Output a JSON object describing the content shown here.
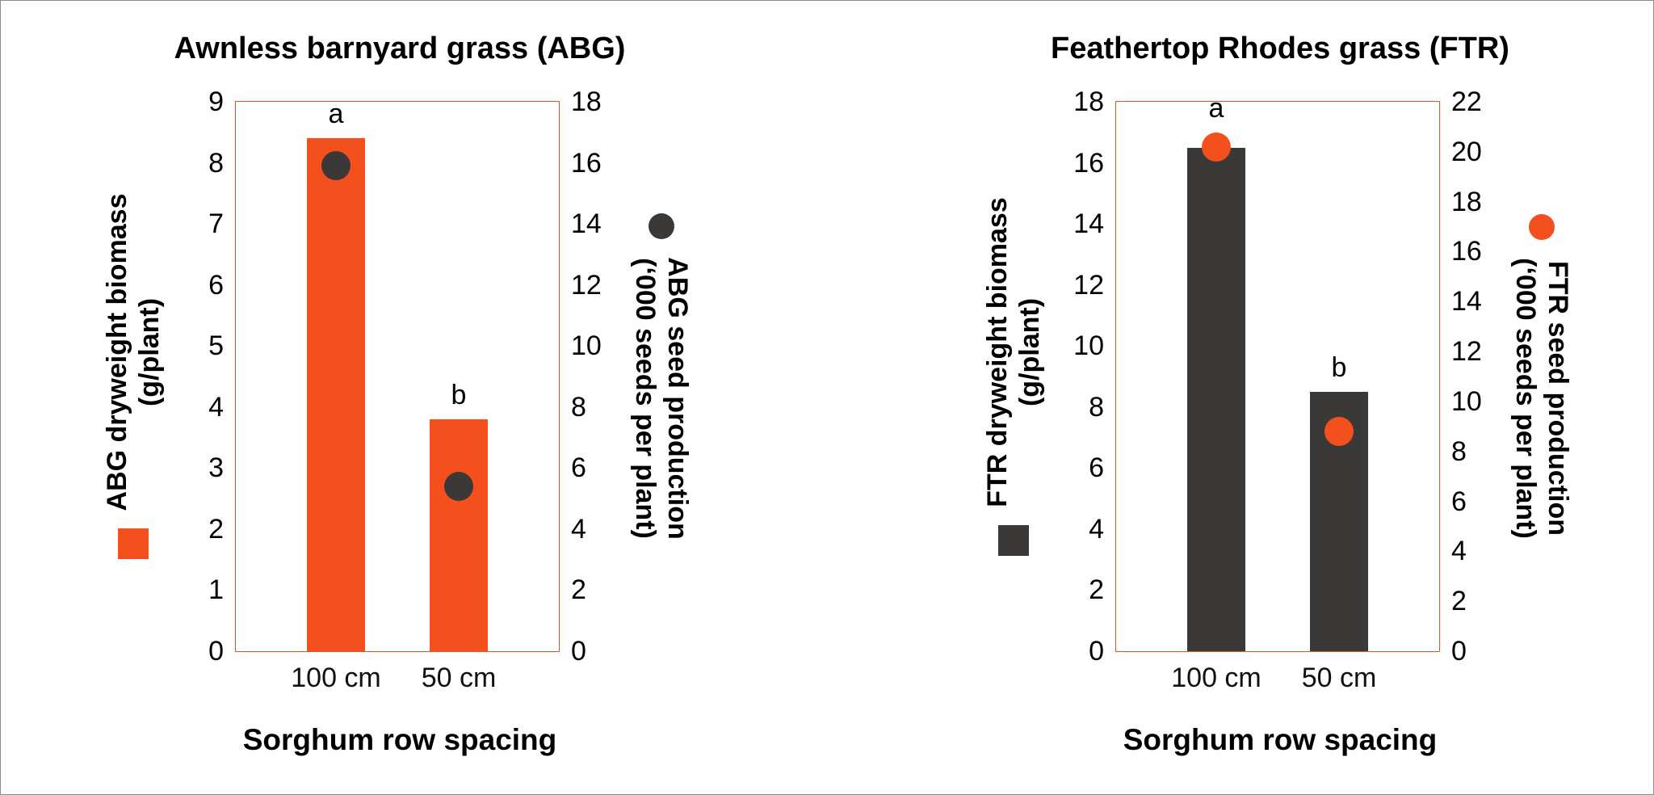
{
  "chart_data": [
    {
      "type": "bar",
      "title": "Awnless barnyard grass (ABG)",
      "categories": [
        "100 cm",
        "50 cm"
      ],
      "xlabel": "Sorghum row spacing",
      "grid": false,
      "legend_position": "axis-labels",
      "plot_border_color": "#F3501E",
      "significance_letters": [
        "a",
        "b"
      ],
      "left_axis": {
        "label_line1": "ABG dryweight biomass",
        "label_line2": "(g/plant)",
        "min": 0,
        "max": 9,
        "step": 1
      },
      "right_axis": {
        "label_line1": "ABG seed production",
        "label_line2": "(‘000 seeds per plant)",
        "min": 0,
        "max": 18,
        "step": 2
      },
      "series": [
        {
          "name": "ABG dryweight biomass (g/plant)",
          "type": "bar",
          "axis": "left",
          "marker": "square",
          "color": "#F3501E",
          "values": [
            8.4,
            3.8
          ]
        },
        {
          "name": "ABG seed production (‘000 seeds per plant)",
          "type": "scatter",
          "axis": "right",
          "marker": "circle",
          "color": "#3B3838",
          "values": [
            15.9,
            5.4
          ]
        }
      ]
    },
    {
      "type": "bar",
      "title": "Feathertop Rhodes grass (FTR)",
      "categories": [
        "100 cm",
        "50 cm"
      ],
      "xlabel": "Sorghum row spacing",
      "grid": false,
      "legend_position": "axis-labels",
      "plot_border_color": "#F3501E",
      "significance_letters": [
        "a",
        "b"
      ],
      "left_axis": {
        "label_line1": "FTR dryweight biomass",
        "label_line2": "(g/plant)",
        "min": 0,
        "max": 18,
        "step": 2
      },
      "right_axis": {
        "label_line1": "FTR seed production",
        "label_line2": "(‘000 seeds per plant)",
        "min": 0,
        "max": 22,
        "step": 2
      },
      "series": [
        {
          "name": "FTR dryweight biomass (g/plant)",
          "type": "bar",
          "axis": "left",
          "marker": "square",
          "color": "#3B3838",
          "values": [
            16.5,
            8.5
          ]
        },
        {
          "name": "FTR seed production (‘000 seeds per plant)",
          "type": "scatter",
          "axis": "right",
          "marker": "circle",
          "color": "#F3501E",
          "values": [
            20.2,
            8.8
          ]
        }
      ]
    }
  ]
}
